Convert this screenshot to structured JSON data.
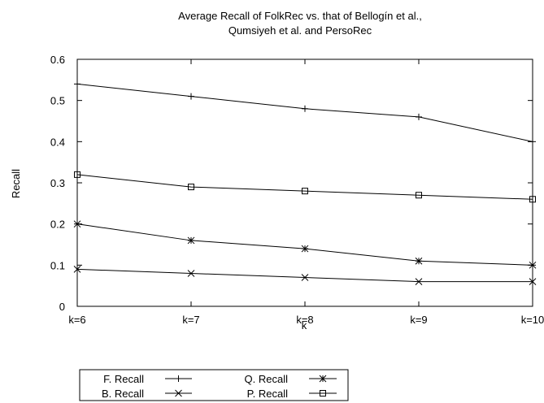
{
  "chart_data": {
    "type": "line",
    "title": "Average Recall of FolkRec vs. that of Bellogín et al.,",
    "subtitle": "Qumsiyeh et al. and PersoRec",
    "xlabel": "k",
    "ylabel": "Recall",
    "categories": [
      "k=6",
      "k=7",
      "k=8",
      "k=9",
      "k=10"
    ],
    "ylim": [
      0,
      0.6
    ],
    "yticks": [
      "0",
      "0.1",
      "0.2",
      "0.3",
      "0.4",
      "0.5",
      "0.6"
    ],
    "grid": false,
    "legend_position": "bottom-left",
    "series": [
      {
        "name": "F. Recall",
        "marker": "plus",
        "values": [
          0.54,
          0.51,
          0.48,
          0.46,
          0.4
        ]
      },
      {
        "name": "B. Recall",
        "marker": "cross",
        "values": [
          0.09,
          0.08,
          0.07,
          0.06,
          0.06
        ]
      },
      {
        "name": "Q. Recall",
        "marker": "star",
        "values": [
          0.2,
          0.16,
          0.14,
          0.11,
          0.1
        ]
      },
      {
        "name": "P. Recall",
        "marker": "square",
        "values": [
          0.32,
          0.29,
          0.28,
          0.27,
          0.26
        ]
      }
    ],
    "line_color": "#000000"
  }
}
